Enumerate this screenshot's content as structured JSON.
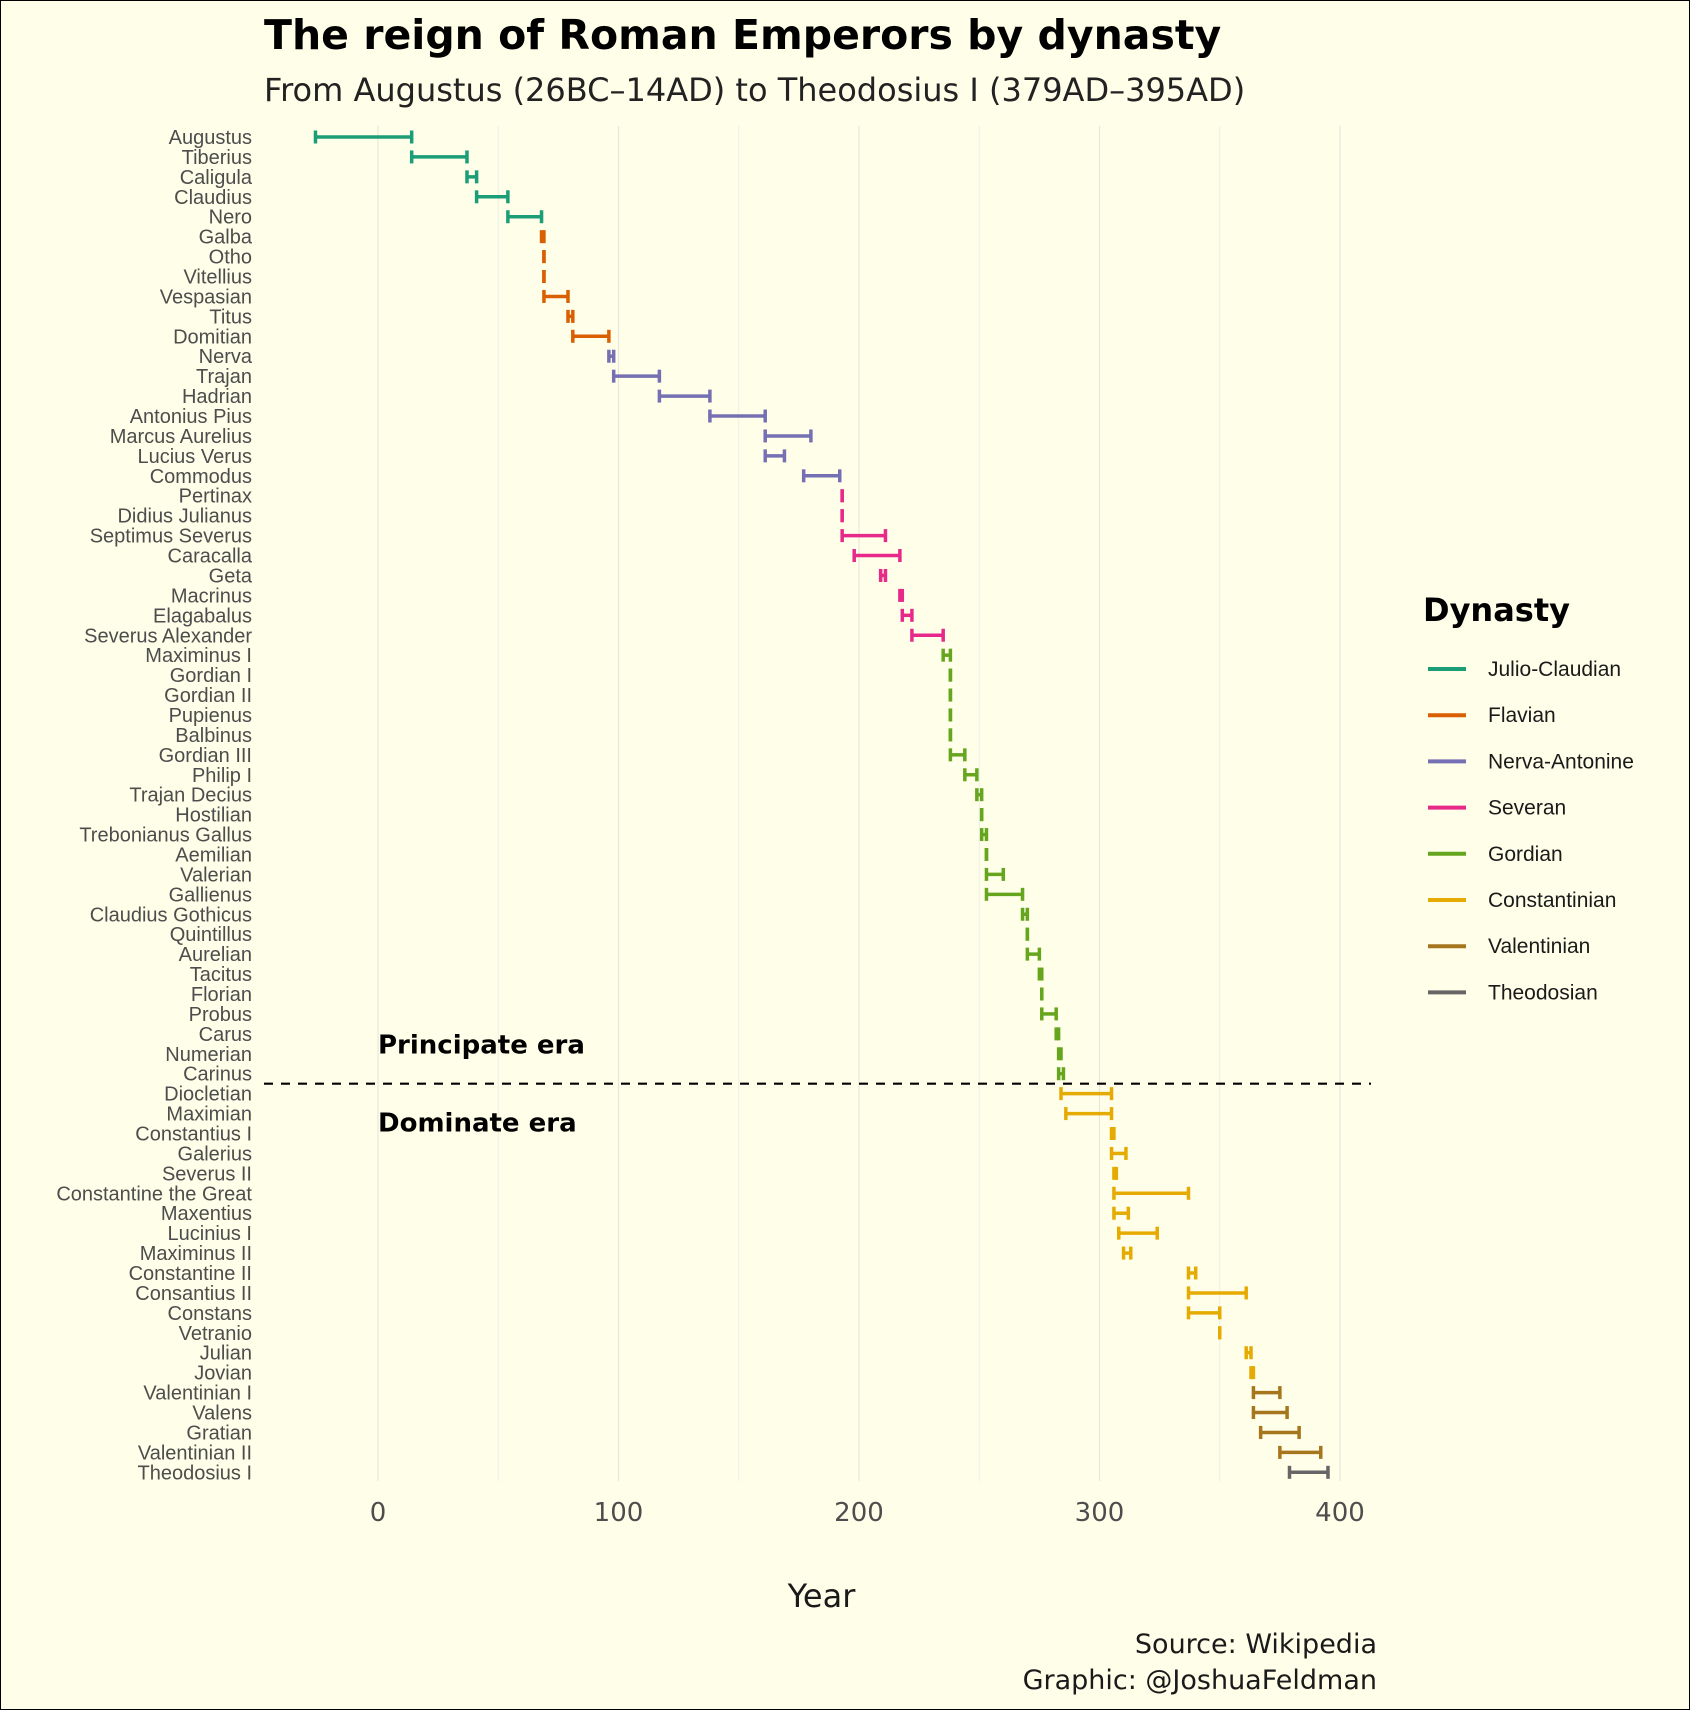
{
  "chart_data": {
    "type": "interval",
    "title": "The reign of Roman Emperors by dynasty",
    "subtitle": "From Augustus (26BC–14AD) to Theodosius I (379AD–395AD)",
    "xlabel": "Year",
    "xlim": [
      -47,
      413
    ],
    "xticks": [
      0,
      100,
      200,
      300,
      400
    ],
    "grid": "vertical major and minor lines",
    "legend": {
      "title": "Dynasty",
      "position": "right",
      "entries": [
        {
          "name": "Julio-Claudian",
          "color": "#1b9e77"
        },
        {
          "name": "Flavian",
          "color": "#d95f02"
        },
        {
          "name": "Nerva-Antonine",
          "color": "#7570b3"
        },
        {
          "name": "Severan",
          "color": "#e7298a"
        },
        {
          "name": "Gordian",
          "color": "#66a61e"
        },
        {
          "name": "Constantinian",
          "color": "#e6ab02"
        },
        {
          "name": "Valentinian",
          "color": "#a6761d"
        },
        {
          "name": "Theodosian",
          "color": "#666666"
        }
      ]
    },
    "annotations": {
      "separator_after": "Carinus",
      "upper_label": "Principate era",
      "lower_label": "Dominate era"
    },
    "emperors": [
      {
        "name": "Augustus",
        "start": -26,
        "end": 14,
        "dynasty": "Julio-Claudian"
      },
      {
        "name": "Tiberius",
        "start": 14,
        "end": 37,
        "dynasty": "Julio-Claudian"
      },
      {
        "name": "Caligula",
        "start": 37,
        "end": 41,
        "dynasty": "Julio-Claudian"
      },
      {
        "name": "Claudius",
        "start": 41,
        "end": 54,
        "dynasty": "Julio-Claudian"
      },
      {
        "name": "Nero",
        "start": 54,
        "end": 68,
        "dynasty": "Julio-Claudian"
      },
      {
        "name": "Galba",
        "start": 68,
        "end": 69,
        "dynasty": "Flavian"
      },
      {
        "name": "Otho",
        "start": 69,
        "end": 69,
        "dynasty": "Flavian"
      },
      {
        "name": "Vitellius",
        "start": 69,
        "end": 69,
        "dynasty": "Flavian"
      },
      {
        "name": "Vespasian",
        "start": 69,
        "end": 79,
        "dynasty": "Flavian"
      },
      {
        "name": "Titus",
        "start": 79,
        "end": 81,
        "dynasty": "Flavian"
      },
      {
        "name": "Domitian",
        "start": 81,
        "end": 96,
        "dynasty": "Flavian"
      },
      {
        "name": "Nerva",
        "start": 96,
        "end": 98,
        "dynasty": "Nerva-Antonine"
      },
      {
        "name": "Trajan",
        "start": 98,
        "end": 117,
        "dynasty": "Nerva-Antonine"
      },
      {
        "name": "Hadrian",
        "start": 117,
        "end": 138,
        "dynasty": "Nerva-Antonine"
      },
      {
        "name": "Antonius Pius",
        "start": 138,
        "end": 161,
        "dynasty": "Nerva-Antonine"
      },
      {
        "name": "Marcus Aurelius",
        "start": 161,
        "end": 180,
        "dynasty": "Nerva-Antonine"
      },
      {
        "name": "Lucius Verus",
        "start": 161,
        "end": 169,
        "dynasty": "Nerva-Antonine"
      },
      {
        "name": "Commodus",
        "start": 177,
        "end": 192,
        "dynasty": "Nerva-Antonine"
      },
      {
        "name": "Pertinax",
        "start": 193,
        "end": 193,
        "dynasty": "Severan"
      },
      {
        "name": "Didius Julianus",
        "start": 193,
        "end": 193,
        "dynasty": "Severan"
      },
      {
        "name": "Septimus Severus",
        "start": 193,
        "end": 211,
        "dynasty": "Severan"
      },
      {
        "name": "Caracalla",
        "start": 198,
        "end": 217,
        "dynasty": "Severan"
      },
      {
        "name": "Geta",
        "start": 209,
        "end": 211,
        "dynasty": "Severan"
      },
      {
        "name": "Macrinus",
        "start": 217,
        "end": 218,
        "dynasty": "Severan"
      },
      {
        "name": "Elagabalus",
        "start": 218,
        "end": 222,
        "dynasty": "Severan"
      },
      {
        "name": "Severus Alexander",
        "start": 222,
        "end": 235,
        "dynasty": "Severan"
      },
      {
        "name": "Maximinus I",
        "start": 235,
        "end": 238,
        "dynasty": "Gordian"
      },
      {
        "name": "Gordian I",
        "start": 238,
        "end": 238,
        "dynasty": "Gordian"
      },
      {
        "name": "Gordian II",
        "start": 238,
        "end": 238,
        "dynasty": "Gordian"
      },
      {
        "name": "Pupienus",
        "start": 238,
        "end": 238,
        "dynasty": "Gordian"
      },
      {
        "name": "Balbinus",
        "start": 238,
        "end": 238,
        "dynasty": "Gordian"
      },
      {
        "name": "Gordian III",
        "start": 238,
        "end": 244,
        "dynasty": "Gordian"
      },
      {
        "name": "Philip I",
        "start": 244,
        "end": 249,
        "dynasty": "Gordian"
      },
      {
        "name": "Trajan Decius",
        "start": 249,
        "end": 251,
        "dynasty": "Gordian"
      },
      {
        "name": "Hostilian",
        "start": 251,
        "end": 251,
        "dynasty": "Gordian"
      },
      {
        "name": "Trebonianus Gallus",
        "start": 251,
        "end": 253,
        "dynasty": "Gordian"
      },
      {
        "name": "Aemilian",
        "start": 253,
        "end": 253,
        "dynasty": "Gordian"
      },
      {
        "name": "Valerian",
        "start": 253,
        "end": 260,
        "dynasty": "Gordian"
      },
      {
        "name": "Gallienus",
        "start": 253,
        "end": 268,
        "dynasty": "Gordian"
      },
      {
        "name": "Claudius Gothicus",
        "start": 268,
        "end": 270,
        "dynasty": "Gordian"
      },
      {
        "name": "Quintillus",
        "start": 270,
        "end": 270,
        "dynasty": "Gordian"
      },
      {
        "name": "Aurelian",
        "start": 270,
        "end": 275,
        "dynasty": "Gordian"
      },
      {
        "name": "Tacitus",
        "start": 275,
        "end": 276,
        "dynasty": "Gordian"
      },
      {
        "name": "Florian",
        "start": 276,
        "end": 276,
        "dynasty": "Gordian"
      },
      {
        "name": "Probus",
        "start": 276,
        "end": 282,
        "dynasty": "Gordian"
      },
      {
        "name": "Carus",
        "start": 282,
        "end": 283,
        "dynasty": "Gordian"
      },
      {
        "name": "Numerian",
        "start": 283,
        "end": 284,
        "dynasty": "Gordian"
      },
      {
        "name": "Carinus",
        "start": 283,
        "end": 285,
        "dynasty": "Gordian"
      },
      {
        "name": "Diocletian",
        "start": 284,
        "end": 305,
        "dynasty": "Constantinian"
      },
      {
        "name": "Maximian",
        "start": 286,
        "end": 305,
        "dynasty": "Constantinian"
      },
      {
        "name": "Constantius I",
        "start": 305,
        "end": 306,
        "dynasty": "Constantinian"
      },
      {
        "name": "Galerius",
        "start": 305,
        "end": 311,
        "dynasty": "Constantinian"
      },
      {
        "name": "Severus II",
        "start": 306,
        "end": 307,
        "dynasty": "Constantinian"
      },
      {
        "name": "Constantine the Great",
        "start": 306,
        "end": 337,
        "dynasty": "Constantinian"
      },
      {
        "name": "Maxentius",
        "start": 306,
        "end": 312,
        "dynasty": "Constantinian"
      },
      {
        "name": "Lucinius I",
        "start": 308,
        "end": 324,
        "dynasty": "Constantinian"
      },
      {
        "name": "Maximinus II",
        "start": 310,
        "end": 313,
        "dynasty": "Constantinian"
      },
      {
        "name": "Constantine II",
        "start": 337,
        "end": 340,
        "dynasty": "Constantinian"
      },
      {
        "name": "Consantius II",
        "start": 337,
        "end": 361,
        "dynasty": "Constantinian"
      },
      {
        "name": "Constans",
        "start": 337,
        "end": 350,
        "dynasty": "Constantinian"
      },
      {
        "name": "Vetranio",
        "start": 350,
        "end": 350,
        "dynasty": "Constantinian"
      },
      {
        "name": "Julian",
        "start": 361,
        "end": 363,
        "dynasty": "Constantinian"
      },
      {
        "name": "Jovian",
        "start": 363,
        "end": 364,
        "dynasty": "Constantinian"
      },
      {
        "name": "Valentinian I",
        "start": 364,
        "end": 375,
        "dynasty": "Valentinian"
      },
      {
        "name": "Valens",
        "start": 364,
        "end": 378,
        "dynasty": "Valentinian"
      },
      {
        "name": "Gratian",
        "start": 367,
        "end": 383,
        "dynasty": "Valentinian"
      },
      {
        "name": "Valentinian II",
        "start": 375,
        "end": 392,
        "dynasty": "Valentinian"
      },
      {
        "name": "Theodosius I",
        "start": 379,
        "end": 395,
        "dynasty": "Theodosian"
      }
    ]
  },
  "caption": {
    "line1": "Source: Wikipedia",
    "line2": "Graphic: @JoshuaFeldman"
  }
}
